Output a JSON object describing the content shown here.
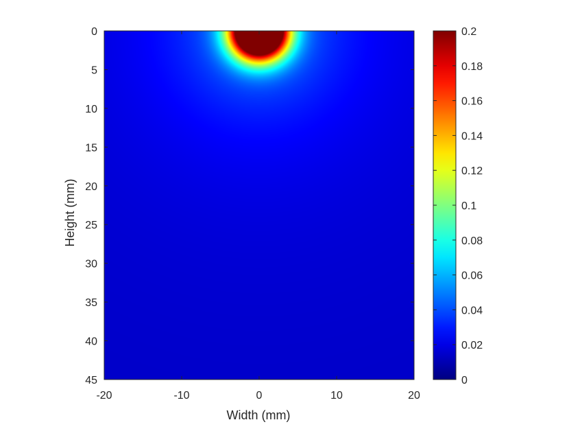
{
  "chart_data": {
    "type": "heatmap",
    "title": "",
    "xlabel": "Width (mm)",
    "ylabel": "Height (mm)",
    "xlim": [
      -20,
      20
    ],
    "ylim": [
      0,
      45
    ],
    "y_direction": "reversed",
    "xticks": [
      -20,
      -10,
      0,
      10,
      20
    ],
    "xtick_labels": [
      "-20",
      "-10",
      "0",
      "10",
      "20"
    ],
    "yticks": [
      0,
      5,
      10,
      15,
      20,
      25,
      30,
      35,
      40,
      45
    ],
    "ytick_labels": [
      "0",
      "5",
      "10",
      "15",
      "20",
      "25",
      "30",
      "35",
      "40",
      "45"
    ],
    "colormap": "jet",
    "clim": [
      0,
      0.2
    ],
    "colorbar_ticks": [
      0,
      0.02,
      0.04,
      0.06,
      0.08,
      0.1,
      0.12,
      0.14,
      0.16,
      0.18,
      0.2
    ],
    "colorbar_tick_labels": [
      "0",
      "0.02",
      "0.04",
      "0.06",
      "0.08",
      "0.1",
      "0.12",
      "0.14",
      "0.16",
      "0.18",
      "0.2"
    ],
    "colorbar_location": "right",
    "grid": false,
    "field": {
      "description": "Radially decaying intensity centered at the top edge (source at x=0, y=0); saturates above 0.2 near the source",
      "source_x": 0,
      "source_y": 0,
      "samples_along_center_x0": {
        "y": [
          0,
          2,
          4,
          6,
          8,
          10,
          15,
          20,
          25,
          30,
          35,
          40,
          45
        ],
        "value": [
          0.2,
          0.2,
          0.14,
          0.075,
          0.058,
          0.047,
          0.036,
          0.029,
          0.025,
          0.022,
          0.019,
          0.017,
          0.015
        ]
      },
      "samples_along_top_y0": {
        "x": [
          -20,
          -10,
          -5,
          0,
          5,
          10,
          20
        ],
        "value": [
          0.022,
          0.032,
          0.06,
          0.2,
          0.06,
          0.032,
          0.022
        ]
      }
    }
  }
}
